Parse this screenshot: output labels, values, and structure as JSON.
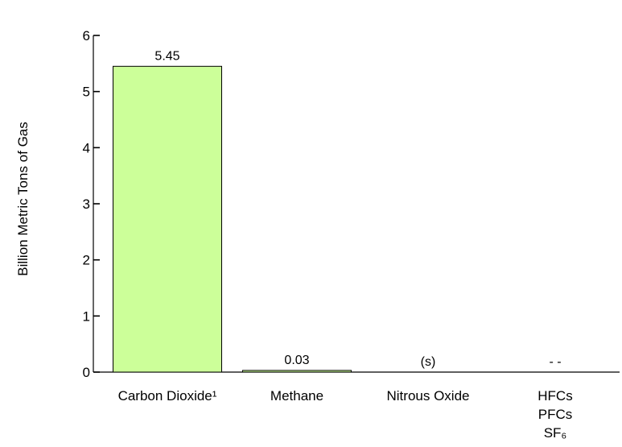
{
  "chart_data": {
    "type": "bar",
    "title": "",
    "xlabel": "",
    "ylabel": "Billion Metric Tons of Gas",
    "ylim": [
      0,
      6
    ],
    "yticks": [
      "0",
      "1",
      "2",
      "3",
      "4",
      "5",
      "6"
    ],
    "grid": false,
    "categories": [
      {
        "lines": [
          "Carbon Dioxide¹"
        ]
      },
      {
        "lines": [
          "Methane"
        ]
      },
      {
        "lines": [
          "Nitrous Oxide"
        ]
      },
      {
        "lines": [
          "HFCs",
          "PFCs",
          "SF₆"
        ]
      }
    ],
    "values": [
      5.45,
      0.03,
      0,
      0
    ],
    "data_labels": [
      "5.45",
      "0.03",
      "(s)",
      "- -"
    ],
    "bar_color": "#ccff99",
    "bar_edge_color": "#000000"
  }
}
